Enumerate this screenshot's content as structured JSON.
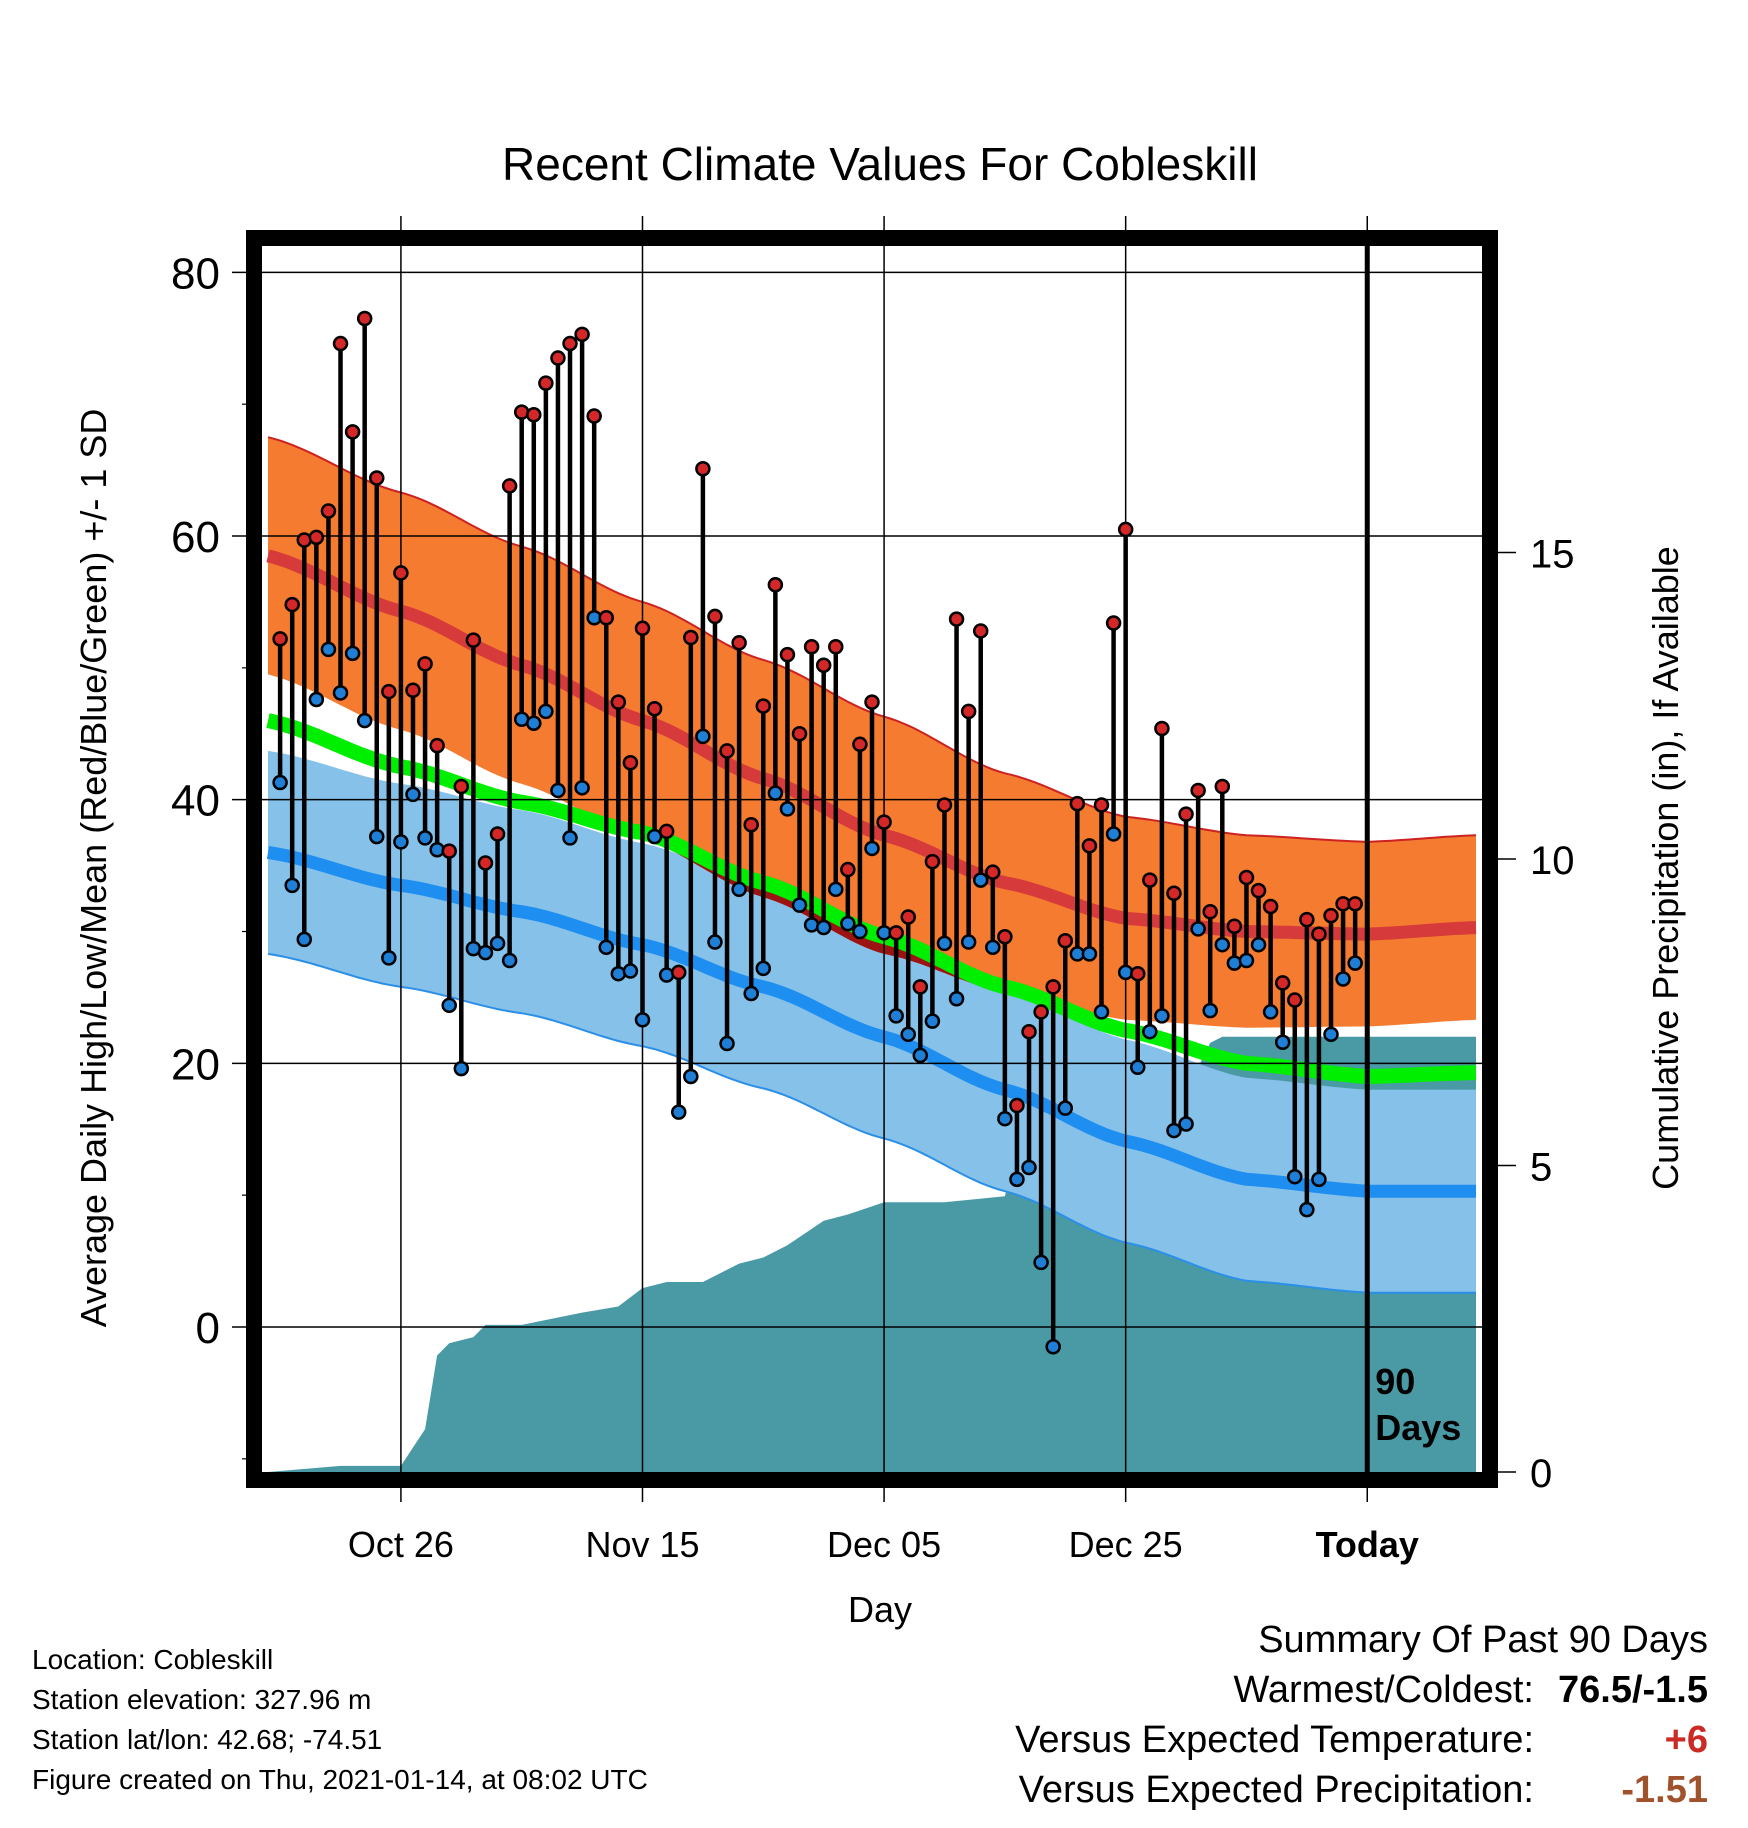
{
  "chart_data": {
    "type": "line",
    "title": "Recent Climate Values For Cobleskill",
    "xlabel": "Day",
    "ylabel": "Average Daily High/Low/Mean (Red/Blue/Green) +/- 1 SD",
    "y2label": "Cumulative Precipitation (in), If Available",
    "ylim": [
      -11,
      82
    ],
    "y2lim": [
      0,
      20
    ],
    "y_ticks": [
      "80",
      "60",
      "40",
      "20",
      "0"
    ],
    "y2_ticks": [
      "15",
      "10",
      "5",
      "0"
    ],
    "x_ticks": [
      "Oct 26",
      "Nov 15",
      "Dec 05",
      "Dec 25",
      "Today"
    ],
    "x_tick_days": [
      -80,
      -60,
      -40,
      -20,
      0
    ],
    "xlim": [
      -91.5,
      9.5
    ],
    "today_label": "90\nDays",
    "grid": true,
    "colors": {
      "high_band": "#f47b30",
      "high_mean": "#d63a3a",
      "high_border": "#cc2222",
      "overlap": "#9b1313",
      "low_band": "#85c1e9",
      "low_mean": "#1f8ef1",
      "low_border": "#2b8fe8",
      "mean": "#00ee00",
      "precip": "#4a9aa5",
      "high_point": "#d42727",
      "low_point": "#1f7fd6"
    },
    "normals": {
      "days": [
        -91,
        -80,
        -70,
        -60,
        -50,
        -40,
        -30,
        -20,
        -10,
        0,
        9
      ],
      "high_mean": [
        58.5,
        54.3,
        50.2,
        46.0,
        41.6,
        37.3,
        33.7,
        31.0,
        30.0,
        29.8,
        30.3
      ],
      "high_sd": [
        9,
        9,
        9,
        9,
        9,
        9,
        8.3,
        7.7,
        7.3,
        7.0,
        7.0
      ],
      "low_mean": [
        36.0,
        33.5,
        31.5,
        29.0,
        25.8,
        22.0,
        18.0,
        14.1,
        11.2,
        10.3,
        10.3
      ],
      "low_sd": [
        7.7,
        7.7,
        7.7,
        7.7,
        7.7,
        7.7,
        7.7,
        7.7,
        7.7,
        7.7,
        7.7
      ],
      "mean": [
        46.0,
        42.5,
        39.8,
        37.5,
        33.7,
        29.6,
        25.8,
        22.5,
        20.0,
        19.0,
        19.3
      ]
    },
    "series": [
      {
        "name": "High",
        "values": [
          52.2,
          54.8,
          59.7,
          59.9,
          61.9,
          74.6,
          67.9,
          76.5,
          64.4,
          48.2,
          57.2,
          48.3,
          50.3,
          44.1,
          36.1,
          41.0,
          52.1,
          35.2,
          37.4,
          63.8,
          69.4,
          69.2,
          71.6,
          73.5,
          74.6,
          75.3,
          69.1,
          53.8,
          47.4,
          42.8,
          53.0,
          46.9,
          37.6,
          26.9,
          52.3,
          65.1,
          53.9,
          43.7,
          51.9,
          38.1,
          47.1,
          56.3,
          51.0,
          45.0,
          51.6,
          50.2,
          51.6,
          34.7,
          44.2,
          47.4,
          38.3,
          29.9,
          31.1,
          25.8,
          35.3,
          39.6,
          53.7,
          46.7,
          52.8,
          34.5,
          29.6,
          16.8,
          22.4,
          23.9,
          25.8,
          29.3,
          39.7,
          36.5,
          39.6,
          53.4,
          60.5,
          26.8,
          33.9,
          45.4,
          32.9,
          38.9,
          40.7,
          31.5,
          41.0,
          30.4,
          34.1,
          33.1,
          31.9,
          26.1,
          24.8,
          30.9,
          29.8,
          31.2,
          32.1,
          32.1
        ]
      },
      {
        "name": "Low",
        "values": [
          41.3,
          33.5,
          29.4,
          47.6,
          51.4,
          48.1,
          51.1,
          46.0,
          37.2,
          28.0,
          36.8,
          40.4,
          37.1,
          36.2,
          24.4,
          19.6,
          28.7,
          28.4,
          29.1,
          27.8,
          46.1,
          45.8,
          46.7,
          40.7,
          37.1,
          40.9,
          53.8,
          28.8,
          26.8,
          27.0,
          23.3,
          37.2,
          26.7,
          16.3,
          19.0,
          44.8,
          29.2,
          21.5,
          33.2,
          25.3,
          27.2,
          40.5,
          39.3,
          32.0,
          30.5,
          30.3,
          33.2,
          30.6,
          30.0,
          36.3,
          29.9,
          23.6,
          22.2,
          20.6,
          23.2,
          29.1,
          24.9,
          29.2,
          33.9,
          28.8,
          15.8,
          11.2,
          12.1,
          4.9,
          -1.5,
          16.6,
          28.3,
          28.3,
          23.9,
          37.4,
          26.9,
          19.7,
          22.4,
          23.6,
          14.9,
          15.4,
          30.2,
          24.0,
          29.0,
          27.6,
          27.8,
          29.0,
          23.9,
          21.6,
          11.4,
          8.9,
          11.2,
          22.2,
          26.4,
          27.6
        ]
      }
    ],
    "precip": {
      "days": [
        -91,
        -85,
        -80,
        -78,
        -77,
        -76,
        -74,
        -73,
        -70,
        -65,
        -62,
        -60,
        -58,
        -55,
        -52,
        -50,
        -48,
        -45,
        -43,
        -40,
        -35,
        -30,
        -29,
        -28,
        -24,
        -21,
        -20,
        -18,
        -14,
        -13,
        -12,
        9
      ],
      "values": [
        0,
        0.1,
        0.1,
        0.7,
        1.9,
        2.1,
        2.2,
        2.4,
        2.4,
        2.6,
        2.7,
        3.0,
        3.1,
        3.1,
        3.4,
        3.5,
        3.7,
        4.1,
        4.2,
        4.4,
        4.4,
        4.5,
        5.3,
        5.5,
        5.5,
        5.8,
        6.4,
        6.5,
        6.6,
        7.0,
        7.1,
        7.1
      ]
    }
  },
  "footer": {
    "location": "Location: Cobleskill",
    "elevation": "Station elevation: 327.96 m",
    "latlon": "Station lat/lon: 42.68; -74.51",
    "created": "Figure created on Thu, 2021-01-14, at 08:02 UTC"
  },
  "summary": {
    "title": "Summary Of Past 90 Days",
    "warm_cold_label": "Warmest/Coldest:",
    "warm_cold_value": "76.5/-1.5",
    "temp_label": "Versus Expected Temperature:",
    "temp_value": "+6",
    "precip_label": "Versus Expected Precipitation:",
    "precip_value": "-1.51"
  }
}
